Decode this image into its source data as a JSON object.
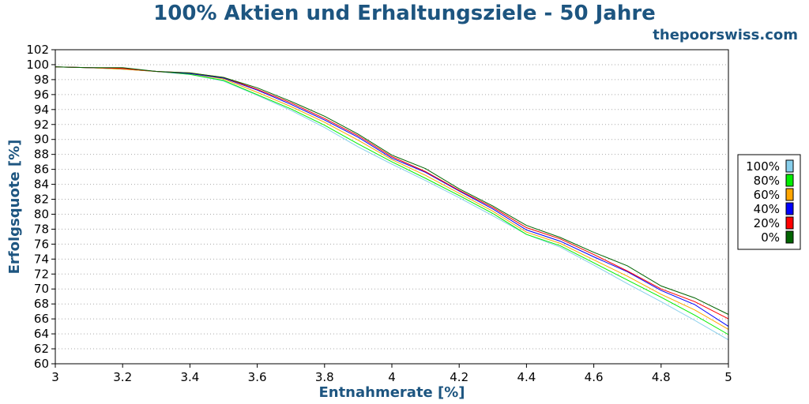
{
  "chart_data": {
    "type": "line",
    "title": "100% Aktien und Erhaltungsziele - 50 Jahre",
    "subtitle": "thepoorswiss.com",
    "xlabel": "Entnahmerate [%]",
    "ylabel": "Erfolgsquote [%]",
    "xlim": [
      3,
      5
    ],
    "ylim": [
      60,
      102
    ],
    "x_ticks": [
      "3",
      "3.2",
      "3.4",
      "3.6",
      "3.8",
      "4",
      "4.2",
      "4.4",
      "4.6",
      "4.8",
      "5"
    ],
    "y_ticks": [
      "60",
      "62",
      "64",
      "66",
      "68",
      "70",
      "72",
      "74",
      "76",
      "78",
      "80",
      "82",
      "84",
      "86",
      "88",
      "90",
      "92",
      "94",
      "96",
      "98",
      "100",
      "102"
    ],
    "grid": "horizontal dotted",
    "legend_position": "right",
    "x": [
      3.0,
      3.1,
      3.2,
      3.3,
      3.4,
      3.5,
      3.6,
      3.7,
      3.8,
      3.9,
      4.0,
      4.1,
      4.2,
      4.3,
      4.4,
      4.5,
      4.6,
      4.7,
      4.8,
      4.9,
      5.0
    ],
    "series": [
      {
        "name": "100%",
        "color": "#87ceeb",
        "values": [
          99.7,
          99.6,
          99.4,
          99.1,
          98.7,
          97.8,
          95.9,
          93.9,
          91.6,
          89.0,
          86.7,
          84.5,
          82.2,
          79.8,
          77.3,
          75.6,
          73.2,
          70.7,
          68.3,
          65.8,
          63.2
        ]
      },
      {
        "name": "80%",
        "color": "#00ee00",
        "values": [
          99.7,
          99.6,
          99.4,
          99.1,
          98.7,
          97.9,
          96.0,
          94.1,
          91.9,
          89.4,
          87.0,
          84.8,
          82.5,
          80.1,
          77.3,
          75.8,
          73.5,
          71.2,
          68.9,
          66.5,
          63.9
        ]
      },
      {
        "name": "60%",
        "color": "#ffa500",
        "values": [
          99.7,
          99.6,
          99.4,
          99.1,
          98.8,
          98.1,
          96.3,
          94.4,
          92.3,
          89.9,
          87.3,
          85.2,
          82.8,
          80.4,
          77.6,
          76.1,
          73.9,
          71.7,
          69.3,
          67.2,
          64.6
        ]
      },
      {
        "name": "40%",
        "color": "#0000ff",
        "values": [
          99.7,
          99.6,
          99.5,
          99.1,
          98.8,
          98.2,
          96.6,
          94.7,
          92.6,
          90.3,
          87.5,
          85.6,
          83.1,
          80.7,
          77.9,
          76.4,
          74.3,
          72.3,
          69.8,
          67.9,
          65.0
        ]
      },
      {
        "name": "20%",
        "color": "#ff0000",
        "values": [
          99.7,
          99.6,
          99.5,
          99.1,
          98.9,
          98.3,
          96.7,
          94.9,
          92.8,
          90.5,
          87.7,
          85.7,
          83.2,
          80.9,
          78.2,
          76.7,
          74.6,
          72.4,
          70.0,
          68.3,
          66.0
        ]
      },
      {
        "name": "0%",
        "color": "#006400",
        "values": [
          99.7,
          99.6,
          99.6,
          99.1,
          98.9,
          98.3,
          96.9,
          95.1,
          93.1,
          90.7,
          87.9,
          86.1,
          83.4,
          81.1,
          78.5,
          76.9,
          74.9,
          73.1,
          70.4,
          68.8,
          66.6
        ]
      }
    ]
  }
}
